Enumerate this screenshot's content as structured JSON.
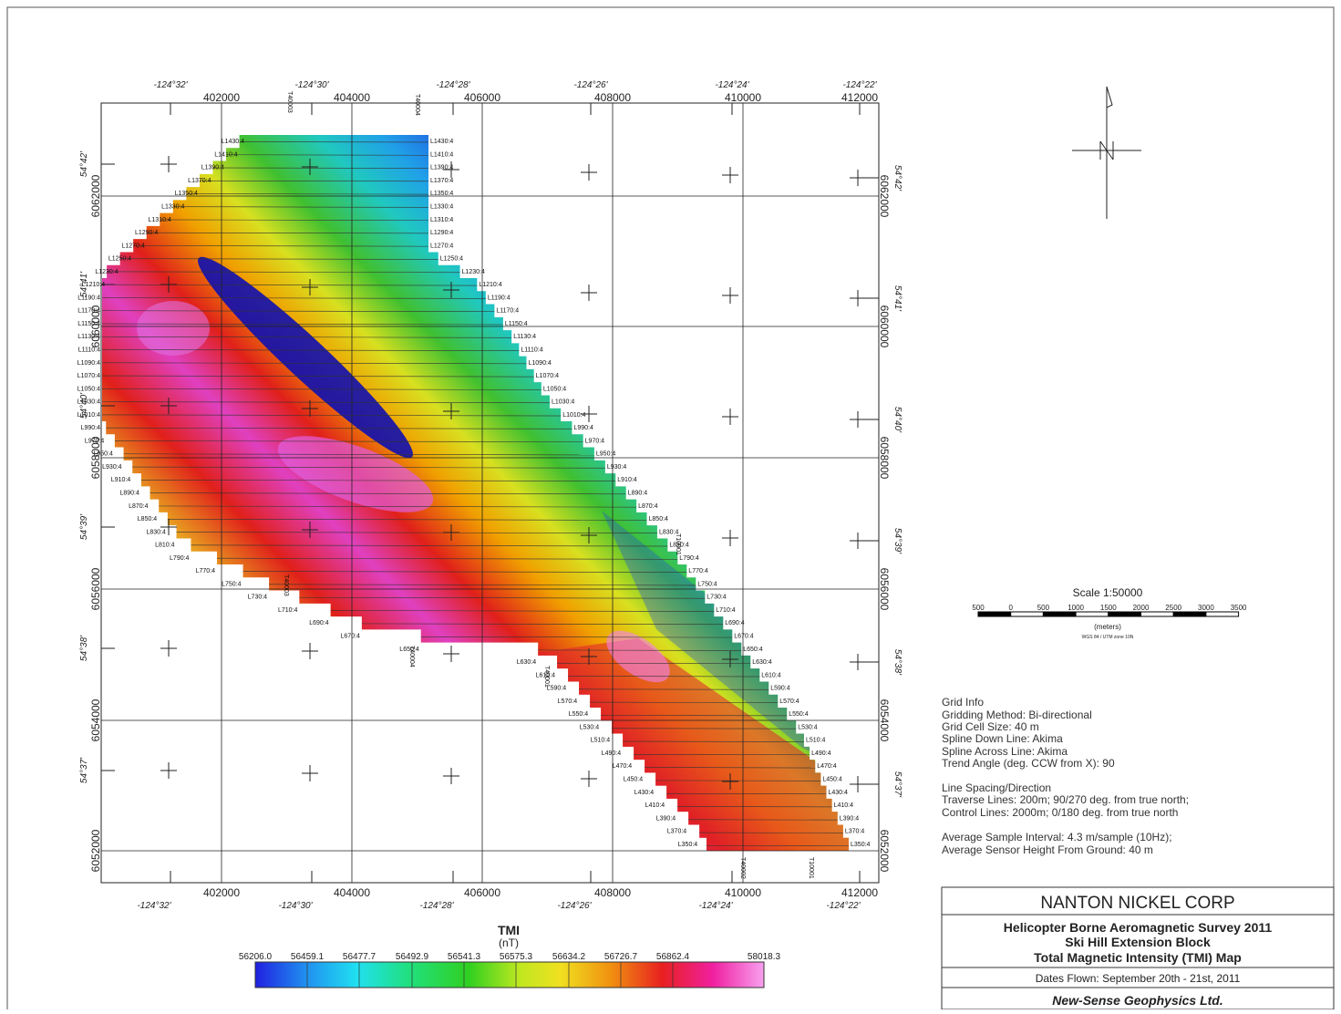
{
  "map": {
    "easting_ticks": [
      "402000",
      "404000",
      "406000",
      "408000",
      "410000",
      "412000"
    ],
    "longitude_ticks": [
      "-124°32'",
      "-124°30'",
      "-124°28'",
      "-124°26'",
      "-124°24'",
      "-124°22'"
    ],
    "northing_ticks": [
      "6062000",
      "6060000",
      "6058000",
      "6056000",
      "6054000",
      "6052000"
    ],
    "latitude_ticks": [
      "54°42'",
      "54°41'",
      "54°40'",
      "54°39'",
      "54°38'",
      "54°37'"
    ],
    "flight_lines": [
      "L1430:4",
      "L1410:4",
      "L1390:4",
      "L1370:4",
      "L1350:4",
      "L1330:4",
      "L1310:4",
      "L1290:4",
      "L1270:4",
      "L1250:4",
      "L1230:4",
      "L1210:4",
      "L1190:4",
      "L1170:4",
      "L1150:4",
      "L1130:4",
      "L1110:4",
      "L1090:4",
      "L1070:4",
      "L1050:4",
      "L1030:4",
      "L1010:4",
      "L990:4",
      "L970:4",
      "L950:4",
      "L930:4",
      "L910:4",
      "L890:4",
      "L870:4",
      "L850:4",
      "L830:4",
      "L810:4",
      "L790:4",
      "L770:4",
      "L750:4",
      "L730:4",
      "L710:4",
      "L690:4",
      "L670:4",
      "L650:4",
      "L630:4",
      "L610:4",
      "L590:4",
      "L570:4",
      "L550:4",
      "L530:4",
      "L510:4",
      "L490:4",
      "L470:4",
      "L450:4",
      "L430:4",
      "L410:4",
      "L390:4",
      "L370:4",
      "L350:4"
    ],
    "tie_lines": [
      "T40003",
      "T40004",
      "T40003",
      "T40004",
      "T40001",
      "T10001",
      "T40002",
      "T10001"
    ]
  },
  "scale": {
    "title": "Scale 1:50000",
    "labels": [
      "500",
      "0",
      "500",
      "1000",
      "1500",
      "2000",
      "2500",
      "3000",
      "3500"
    ],
    "units": "(meters)",
    "datum": "WGS 84 / UTM zone 10N"
  },
  "grid_info": [
    "Grid Info",
    "Gridding Method: Bi-directional",
    "Grid Cell Size: 40 m",
    "Spline Down Line: Akima",
    "Spline Across Line: Akima",
    "Trend Angle (deg. CCW from X): 90",
    "Line Spacing/Direction",
    "Traverse Lines: 200m; 90/270 deg. from true north;",
    "Control Lines: 2000m; 0/180 deg. from true north",
    "Average Sample Interval: 4.3 m/sample (10Hz);",
    "Average Sensor Height From Ground: 40 m"
  ],
  "legend": {
    "title": "TMI",
    "units": "(nT)",
    "labels": [
      "56206.0",
      "56459.1",
      "56477.7",
      "56492.9",
      "56541.3",
      "56575.3",
      "56634.2",
      "56726.7",
      "56862.4",
      "58018.3"
    ]
  },
  "title_block": {
    "company": "NANTON NICKEL CORP",
    "survey": "Helicopter Borne Aeromagnetic Survey 2011",
    "block": "Ski Hill Extension Block",
    "map": "Total Magnetic Intensity (TMI) Map",
    "dates": "Dates Flown: September 20th - 21st, 2011",
    "contractor": "New-Sense Geophysics Ltd."
  }
}
